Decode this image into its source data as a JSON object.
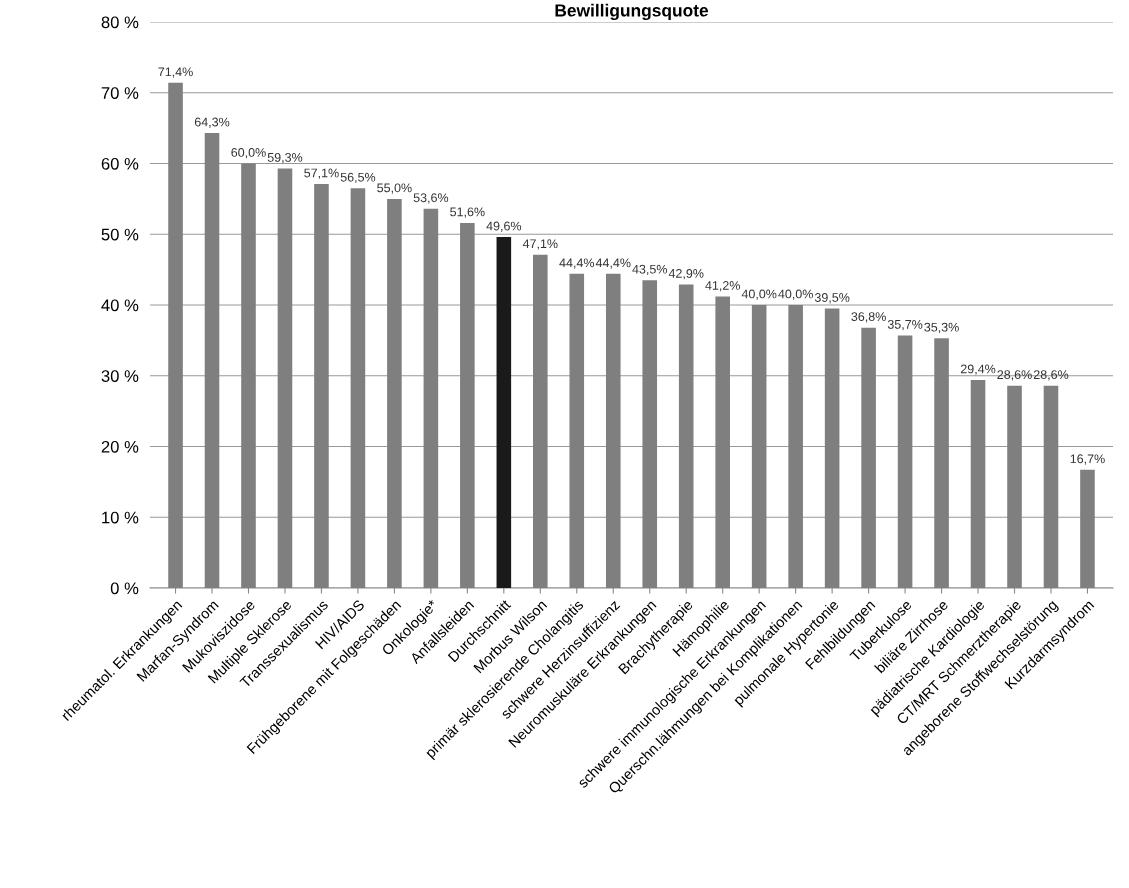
{
  "chart_data": {
    "type": "bar",
    "title": "Bewilligungsquote",
    "categories": [
      "rheumatol. Erkrankungen",
      "Marfan-Syndrom",
      "Mukoviszidose",
      "Multiple Sklerose",
      "Transsexualismus",
      "HIV/AIDS",
      "Frühgeborene mit Folgeschäden",
      "Onkologie*",
      "Anfallsleiden",
      "Durchschnitt",
      "Morbus Wilson",
      "primär sklerosierende Cholangitis",
      "schwere Herzinsuffizienz",
      "Neuromuskuläre Erkrankungen",
      "Brachytherapie",
      "Hämophilie",
      "schwere immunologische Erkrankungen",
      "Querschn.lähmungen bei Komplikationen",
      "pulmonale Hypertonie",
      "Fehlbildungen",
      "Tuberkulose",
      "biliäre Zirrhose",
      "pädiatrische Kardiologie",
      "CT/MRT Schmerztherapie",
      "angeborene Stoffwechselstörung",
      "Kurzdarmsyndrom"
    ],
    "values": [
      71.4,
      64.3,
      60.0,
      59.3,
      57.1,
      56.5,
      55.0,
      53.6,
      51.6,
      49.6,
      47.1,
      44.4,
      44.4,
      43.5,
      42.9,
      41.2,
      40.0,
      40.0,
      39.5,
      36.8,
      35.7,
      35.3,
      29.4,
      28.6,
      28.6,
      16.7
    ],
    "value_labels": [
      "71,4%",
      "64,3%",
      "60,0%",
      "59,3%",
      "57,1%",
      "56,5%",
      "55,0%",
      "53,6%",
      "51,6%",
      "49,6%",
      "47,1%",
      "44,4%",
      "44,4%",
      "43,5%",
      "42,9%",
      "41,2%",
      "40,0%",
      "40,0%",
      "39,5%",
      "36,8%",
      "35,7%",
      "35,3%",
      "29,4%",
      "28,6%",
      "28,6%",
      "16,7%"
    ],
    "colors": [
      "#7f7f7f",
      "#7f7f7f",
      "#7f7f7f",
      "#7f7f7f",
      "#7f7f7f",
      "#7f7f7f",
      "#7f7f7f",
      "#7f7f7f",
      "#7f7f7f",
      "#1a1a1a",
      "#7f7f7f",
      "#7f7f7f",
      "#7f7f7f",
      "#7f7f7f",
      "#7f7f7f",
      "#7f7f7f",
      "#7f7f7f",
      "#7f7f7f",
      "#7f7f7f",
      "#7f7f7f",
      "#7f7f7f",
      "#7f7f7f",
      "#7f7f7f",
      "#7f7f7f",
      "#7f7f7f",
      "#7f7f7f"
    ],
    "ylim": [
      0,
      80
    ],
    "yticks": [
      {
        "value": 0,
        "label": "0 %"
      },
      {
        "value": 10,
        "label": "10 %"
      },
      {
        "value": 20,
        "label": "20 %"
      },
      {
        "value": 30,
        "label": "30 %"
      },
      {
        "value": 40,
        "label": "40 %"
      },
      {
        "value": 50,
        "label": "50 %"
      },
      {
        "value": 60,
        "label": "60 %"
      },
      {
        "value": 70,
        "label": "70 %"
      },
      {
        "value": 80,
        "label": "80 %"
      }
    ],
    "grid": "y",
    "legend": false
  }
}
